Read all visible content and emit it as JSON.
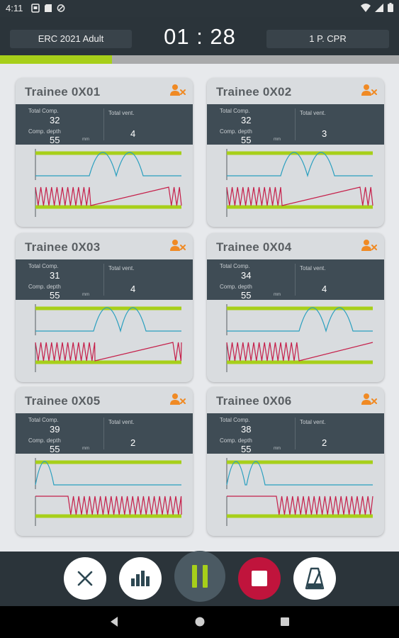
{
  "status": {
    "time": "4:11"
  },
  "header": {
    "protocol": "ERC 2021 Adult",
    "timer": "01 : 28",
    "mode": "1 P. CPR",
    "progress": 0.28
  },
  "colors": {
    "accent": "#a7cf1a",
    "vent_curve": "#2a9fbf",
    "comp_curve": "#c51f4a",
    "stop": "#c0143c",
    "remove_icon": "#f08a24"
  },
  "labels": {
    "total_comp": "Total Comp.",
    "total_vent": "Total vent.",
    "comp_depth": "Comp. depth",
    "unit": "mm"
  },
  "trainees": [
    {
      "name": "Trainee 0X01",
      "total_comp": "32",
      "comp_depth": "55",
      "total_vent": "4"
    },
    {
      "name": "Trainee 0X02",
      "total_comp": "32",
      "comp_depth": "55",
      "total_vent": "3"
    },
    {
      "name": "Trainee 0X03",
      "total_comp": "31",
      "comp_depth": "55",
      "total_vent": "4"
    },
    {
      "name": "Trainee 0X04",
      "total_comp": "34",
      "comp_depth": "55",
      "total_vent": "4"
    },
    {
      "name": "Trainee 0X05",
      "total_comp": "39",
      "comp_depth": "55",
      "total_vent": "2"
    },
    {
      "name": "Trainee 0X06",
      "total_comp": "38",
      "comp_depth": "55",
      "total_vent": "2"
    }
  ],
  "controls": {
    "cancel_icon": "close-icon",
    "stats_icon": "bar-chart-icon",
    "pause_icon": "pause-icon",
    "stop_icon": "stop-icon",
    "metronome_icon": "metronome-icon"
  }
}
